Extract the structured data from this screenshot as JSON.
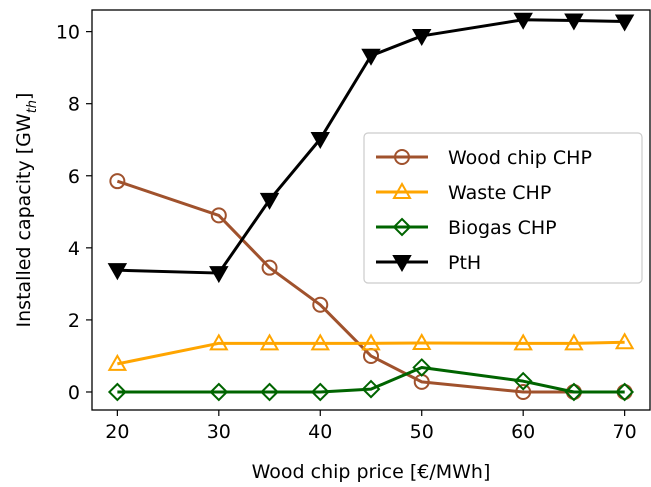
{
  "chart_data": {
    "type": "line",
    "xlabel": "Wood chip price [€/MWh]",
    "ylabel_main": "Installed capacity [GW",
    "ylabel_sub": "th",
    "ylabel_close": "]",
    "xlim": [
      17.5,
      72.5
    ],
    "ylim": [
      -0.5,
      10.6
    ],
    "xticks": [
      20,
      30,
      40,
      50,
      60,
      70
    ],
    "yticks": [
      0,
      2,
      4,
      6,
      8,
      10
    ],
    "x": [
      20,
      30,
      35,
      40,
      45,
      50,
      60,
      65,
      70
    ],
    "grid": false,
    "legend_position": "center-right",
    "series": [
      {
        "name": "Wood chip CHP",
        "color": "#a0522d",
        "marker": "circle",
        "values": [
          5.85,
          4.9,
          3.45,
          2.42,
          1.0,
          0.28,
          0.0,
          0.0,
          0.0
        ]
      },
      {
        "name": "Waste CHP",
        "color": "#ffa500",
        "marker": "triangle-up",
        "values": [
          0.78,
          1.35,
          1.35,
          1.35,
          1.35,
          1.36,
          1.35,
          1.35,
          1.38
        ]
      },
      {
        "name": "Biogas CHP",
        "color": "#006400",
        "marker": "diamond",
        "values": [
          0.0,
          0.0,
          0.0,
          0.0,
          0.08,
          0.68,
          0.3,
          0.0,
          0.0
        ]
      },
      {
        "name": "PtH",
        "color": "#000000",
        "marker": "triangle-down",
        "values": [
          3.38,
          3.3,
          5.33,
          7.02,
          9.33,
          9.88,
          10.33,
          10.31,
          10.28
        ]
      }
    ]
  }
}
